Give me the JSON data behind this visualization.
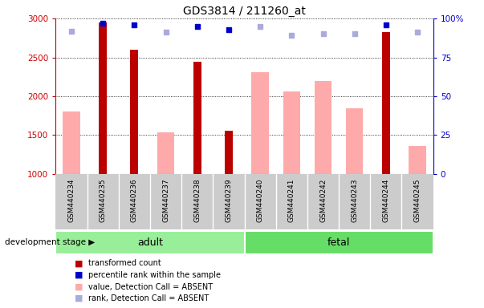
{
  "title": "GDS3814 / 211260_at",
  "samples": [
    "GSM440234",
    "GSM440235",
    "GSM440236",
    "GSM440237",
    "GSM440238",
    "GSM440239",
    "GSM440240",
    "GSM440241",
    "GSM440242",
    "GSM440243",
    "GSM440244",
    "GSM440245"
  ],
  "red_bars": [
    null,
    2950,
    2600,
    null,
    2440,
    1560,
    null,
    null,
    null,
    null,
    2830,
    null
  ],
  "pink_bars": [
    1800,
    null,
    null,
    1540,
    null,
    null,
    2310,
    2060,
    2200,
    1850,
    null,
    1360
  ],
  "blue_squares": [
    null,
    97,
    96,
    null,
    95,
    93,
    null,
    null,
    null,
    null,
    96,
    null
  ],
  "lavender_squares": [
    92,
    null,
    null,
    91,
    null,
    null,
    95,
    89,
    90,
    90,
    null,
    91
  ],
  "ylim_left": [
    1000,
    3000
  ],
  "ylim_right": [
    0,
    100
  ],
  "yticks_left": [
    1000,
    1500,
    2000,
    2500,
    3000
  ],
  "yticks_right": [
    0,
    25,
    50,
    75,
    100
  ],
  "adult_label": "adult",
  "fetal_label": "fetal",
  "stage_label": "development stage",
  "legend_items": [
    {
      "label": "transformed count",
      "color": "#bb0000"
    },
    {
      "label": "percentile rank within the sample",
      "color": "#0000cc"
    },
    {
      "label": "value, Detection Call = ABSENT",
      "color": "#ffaaaa"
    },
    {
      "label": "rank, Detection Call = ABSENT",
      "color": "#aaaadd"
    }
  ],
  "red_color": "#bb0000",
  "pink_color": "#ffaaaa",
  "blue_color": "#0000cc",
  "lavender_color": "#aaaadd",
  "adult_bg": "#99ee99",
  "fetal_bg": "#66dd66",
  "tick_area_bg": "#cccccc",
  "right_tick_color": "#0000cc",
  "left_tick_color": "#cc0000"
}
